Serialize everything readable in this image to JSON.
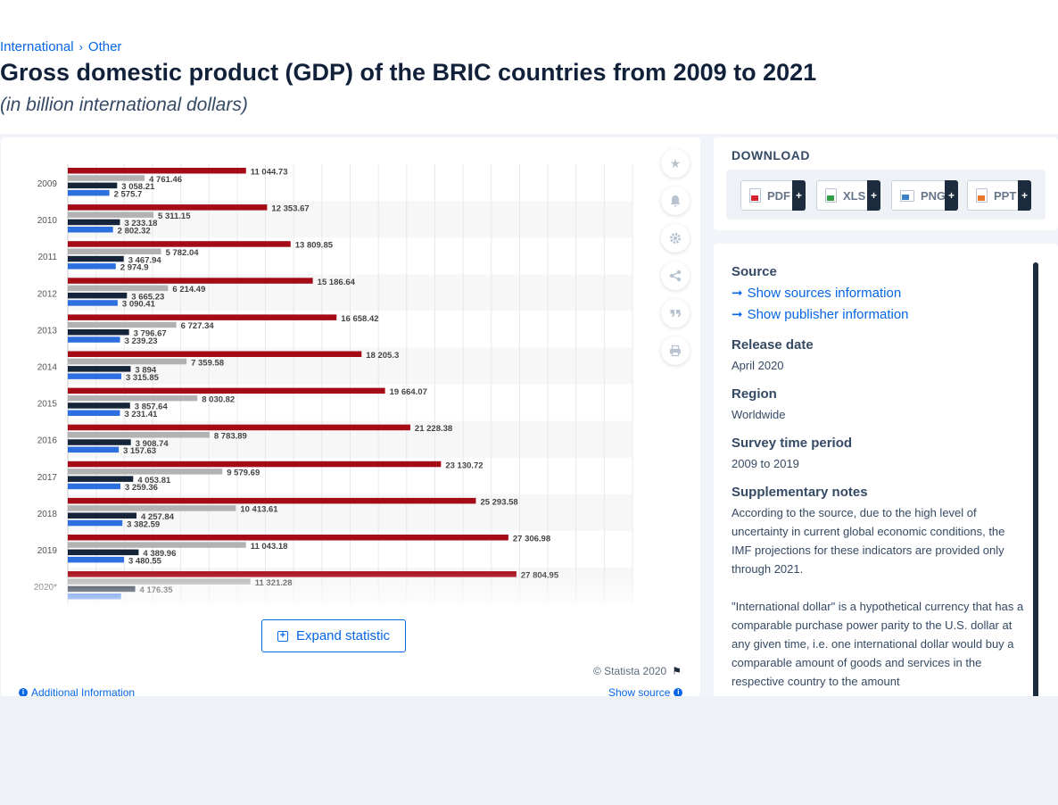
{
  "breadcrumb": {
    "item1": "International",
    "sep": "›",
    "item2": "Other"
  },
  "title": "Gross domestic product (GDP) of the BRIC countries from 2009 to 2021",
  "subtitle": "(in billion international dollars)",
  "tools": [
    "star-icon",
    "bell-icon",
    "gear-icon",
    "share-icon",
    "quote-icon",
    "print-icon"
  ],
  "expand_label": "Expand statistic",
  "copyright": "© Statista 2020",
  "additional_info": "Additional Information",
  "show_source": "Show source",
  "download": {
    "title": "DOWNLOAD",
    "buttons": [
      {
        "label": "PDF",
        "color": "#d6232d"
      },
      {
        "label": "XLS",
        "color": "#2f9e44"
      },
      {
        "label": "PNG",
        "color": "#3b82c4"
      },
      {
        "label": "PPT",
        "color": "#e8762c"
      }
    ]
  },
  "details": {
    "source_heading": "Source",
    "show_sources": "Show sources information",
    "show_publisher": "Show publisher information",
    "release_heading": "Release date",
    "release_value": "April 2020",
    "region_heading": "Region",
    "region_value": "Worldwide",
    "survey_heading": "Survey time period",
    "survey_value": "2009 to 2019",
    "notes_heading": "Supplementary notes",
    "notes_p1": "According to the source, due to the high level of uncertainty in current global economic conditions, the IMF projections for these indicators are provided only through 2021.",
    "notes_p2": "\"International dollar\" is a hypothetical currency that has a comparable purchase power parity to the U.S. dollar at any given time, i.e. one international dollar would buy a comparable amount of goods and services in the respective country to the amount"
  },
  "chart_data": {
    "type": "bar",
    "orientation": "horizontal",
    "categories": [
      "2009",
      "2010",
      "2011",
      "2012",
      "2013",
      "2014",
      "2015",
      "2016",
      "2017",
      "2018",
      "2019",
      "2020*"
    ],
    "series": [
      {
        "color": "#a50a17",
        "values": [
          11044.73,
          12353.67,
          13809.85,
          15186.64,
          16658.42,
          18205.3,
          19664.07,
          21228.38,
          23130.72,
          25293.58,
          27306.98,
          27804.95
        ],
        "labels": [
          "11 044.73",
          "12 353.67",
          "13 809.85",
          "15 186.64",
          "16 658.42",
          "18 205.3",
          "19 664.07",
          "21 228.38",
          "23 130.72",
          "25 293.58",
          "27 306.98",
          "27 804.95"
        ]
      },
      {
        "color": "#b2b2b2",
        "values": [
          4761.46,
          5311.15,
          5782.04,
          6214.49,
          6727.34,
          7359.58,
          8030.82,
          8783.89,
          9579.69,
          10413.61,
          11043.18,
          11321.28
        ],
        "labels": [
          "4 761.46",
          "5 311.15",
          "5 782.04",
          "6 214.49",
          "6 727.34",
          "7 359.58",
          "8 030.82",
          "8 783.89",
          "9 579.69",
          "10 413.61",
          "11 043.18",
          "11 321.28"
        ]
      },
      {
        "color": "#152439",
        "values": [
          3058.21,
          3233.18,
          3467.94,
          3665.23,
          3796.67,
          3894,
          3857.64,
          3908.74,
          4053.81,
          4257.84,
          4389.96,
          4176.35
        ],
        "labels": [
          "3 058.21",
          "3 233.18",
          "3 467.94",
          "3 665.23",
          "3 796.67",
          "3 894",
          "3 857.64",
          "3 908.74",
          "4 053.81",
          "4 257.84",
          "4 389.96",
          "4 176.35"
        ]
      },
      {
        "color": "#2e6fe0",
        "values": [
          2575.7,
          2802.32,
          2974.9,
          3090.41,
          3239.23,
          3315.85,
          3231.41,
          3157.63,
          3259.36,
          3382.59,
          3480.55,
          3300
        ],
        "labels": [
          "2 575.7",
          "2 802.32",
          "2 974.9",
          "3 090.41",
          "3 239.23",
          "3 315.85",
          "3 231.41",
          "3 157.63",
          "3 259.36",
          "3 382.59",
          "3 480.55",
          ""
        ]
      }
    ],
    "xlim": [
      0,
      35000
    ],
    "grid": true,
    "legend": "none"
  }
}
